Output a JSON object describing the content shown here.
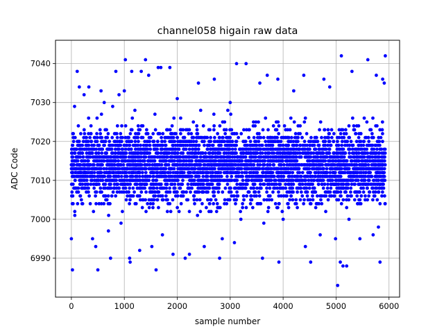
{
  "chart_data": {
    "type": "scatter",
    "title": "channel058 higain raw data",
    "xlabel": "sample number",
    "ylabel": "ADC Code",
    "xlim": [
      -300,
      6200
    ],
    "ylim": [
      6980,
      7046
    ],
    "x_ticks": [
      0,
      1000,
      2000,
      3000,
      4000,
      5000,
      6000
    ],
    "x_tick_labels": [
      "0",
      "1000",
      "2000",
      "3000",
      "4000",
      "5000",
      "6000"
    ],
    "y_ticks": [
      6990,
      7000,
      7010,
      7020,
      7030,
      7040
    ],
    "y_tick_labels": [
      "6990",
      "7000",
      "7010",
      "7020",
      "7030",
      "7040"
    ],
    "grid": true,
    "marker_color": "#0000ff",
    "series": [
      {
        "points": [
          [
            0,
            6995
          ],
          [
            20,
            6987
          ],
          [
            60,
            7029
          ],
          [
            110,
            7038
          ],
          [
            150,
            7034
          ],
          [
            240,
            7032
          ],
          [
            330,
            7034
          ],
          [
            400,
            6995
          ],
          [
            460,
            6993
          ],
          [
            500,
            6987
          ],
          [
            560,
            7033
          ],
          [
            620,
            7030
          ],
          [
            700,
            6997
          ],
          [
            740,
            6990
          ],
          [
            780,
            7029
          ],
          [
            840,
            7038
          ],
          [
            900,
            7032
          ],
          [
            1000,
            7033
          ],
          [
            1020,
            7041
          ],
          [
            1100,
            6990
          ],
          [
            1110,
            6989
          ],
          [
            1140,
            7038
          ],
          [
            1200,
            7028
          ],
          [
            1290,
            6992
          ],
          [
            1320,
            7038
          ],
          [
            1400,
            7041
          ],
          [
            1460,
            7037
          ],
          [
            1520,
            6993
          ],
          [
            1600,
            6987
          ],
          [
            1640,
            7039
          ],
          [
            1690,
            7039
          ],
          [
            1720,
            6996
          ],
          [
            1860,
            7039
          ],
          [
            1920,
            6991
          ],
          [
            2000,
            7031
          ],
          [
            2150,
            6990
          ],
          [
            2230,
            6991
          ],
          [
            2400,
            7035
          ],
          [
            2510,
            6993
          ],
          [
            2700,
            7036
          ],
          [
            2800,
            6990
          ],
          [
            2850,
            6995
          ],
          [
            3000,
            7030
          ],
          [
            3080,
            6994
          ],
          [
            3120,
            7040
          ],
          [
            3300,
            7040
          ],
          [
            3560,
            7035
          ],
          [
            3610,
            6990
          ],
          [
            3700,
            7037
          ],
          [
            3900,
            7036
          ],
          [
            3920,
            6989
          ],
          [
            4000,
            7000
          ],
          [
            4200,
            7033
          ],
          [
            4390,
            7037
          ],
          [
            4420,
            6993
          ],
          [
            4520,
            6989
          ],
          [
            4700,
            6996
          ],
          [
            4770,
            7036
          ],
          [
            4880,
            7034
          ],
          [
            4990,
            6995
          ],
          [
            5030,
            6983
          ],
          [
            5080,
            6989
          ],
          [
            5100,
            7042
          ],
          [
            5130,
            6988
          ],
          [
            5200,
            6988
          ],
          [
            5300,
            7038
          ],
          [
            5450,
            6995
          ],
          [
            5600,
            7041
          ],
          [
            5700,
            6996
          ],
          [
            5760,
            7037
          ],
          [
            5800,
            6998
          ],
          [
            5830,
            6989
          ],
          [
            5880,
            7036
          ],
          [
            5910,
            7035
          ],
          [
            5930,
            7042
          ]
        ]
      }
    ]
  }
}
